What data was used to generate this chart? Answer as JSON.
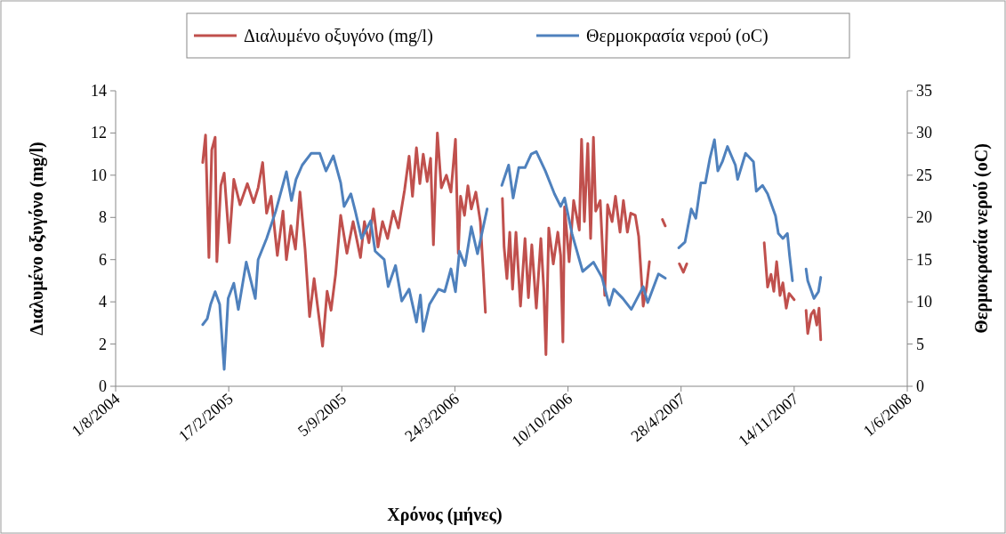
{
  "chart_data": {
    "type": "line",
    "xlabel": "Χρόνος (μήνες)",
    "ylabel": "Διαλυμένο οξυγόνο (mg/l)",
    "y2label": "Θερμοκρασία νερού (oC)",
    "xlim": [
      "2004-08-01",
      "2008-06-01"
    ],
    "xticks": [
      {
        "value": "2004-08-01",
        "label": "1/8/2004"
      },
      {
        "value": "2005-02-17",
        "label": "17/2/2005"
      },
      {
        "value": "2005-09-05",
        "label": "5/9/2005"
      },
      {
        "value": "2006-03-24",
        "label": "24/3/2006"
      },
      {
        "value": "2006-10-10",
        "label": "10/10/2006"
      },
      {
        "value": "2007-04-28",
        "label": "28/4/2007"
      },
      {
        "value": "2007-11-14",
        "label": "14/11/2007"
      },
      {
        "value": "2008-06-01",
        "label": "1/6/2008"
      }
    ],
    "ylim": [
      0,
      14
    ],
    "yticks": [
      0,
      2,
      4,
      6,
      8,
      10,
      12,
      14
    ],
    "y2lim": [
      0,
      35
    ],
    "y2ticks": [
      0,
      5,
      10,
      15,
      20,
      25,
      30,
      35
    ],
    "legend": "top",
    "grid": false,
    "marker": "none",
    "line_style": "solid",
    "series": [
      {
        "name": "Διαλυμένο οξυγόνο (mg/l)",
        "color": "#c0504d",
        "x": [
          "2005-01-02",
          "2005-01-07",
          "2005-01-13",
          "2005-01-18",
          "2005-01-24",
          "2005-01-27",
          "2005-02-03",
          "2005-02-09",
          "2005-02-18",
          "2005-02-26",
          "2005-03-09",
          "2005-03-22",
          "2005-04-02",
          "2005-04-10",
          "2005-04-18",
          "2005-04-25",
          "2005-05-03",
          "2005-05-14",
          "2005-05-24",
          "2005-05-30",
          "2005-06-07",
          "2005-06-15",
          "2005-06-23",
          "2005-07-02",
          "2005-07-10",
          "2005-07-18",
          "2005-07-26",
          "2005-08-02",
          "2005-08-10",
          "2005-08-17",
          "2005-08-25",
          "2005-09-03",
          "2005-09-14",
          "2005-09-25",
          "2005-10-08",
          "2005-10-15",
          "2005-10-23",
          "2005-10-31",
          "2005-11-08",
          "2005-11-16",
          "2005-11-25",
          "2005-12-05",
          "2005-12-14",
          "2005-12-25",
          "2006-01-02",
          "2006-01-08",
          "2006-01-15",
          "2006-01-21",
          "2006-01-27",
          "2006-02-03",
          "2006-02-09",
          "2006-02-14",
          "2006-02-18",
          "2006-02-21",
          "2006-02-28",
          "2006-03-09",
          "2006-03-17",
          "2006-03-25",
          "2006-03-30",
          "2006-04-03",
          "2006-04-10",
          "2006-04-16",
          "2006-04-22",
          "2006-04-30",
          "2006-05-08",
          "2006-05-13",
          "2006-05-17",
          "2006-06-01",
          "2006-06-16",
          "2006-06-19",
          "2006-06-24",
          "2006-06-29",
          "2006-07-04",
          "2006-07-10",
          "2006-07-18",
          "2006-07-26",
          "2006-08-01",
          "2006-08-07",
          "2006-08-15",
          "2006-08-23",
          "2006-08-28",
          "2006-09-01",
          "2006-09-06",
          "2006-09-14",
          "2006-09-22",
          "2006-09-27",
          "2006-10-01",
          "2006-10-04",
          "2006-10-12",
          "2006-10-20",
          "2006-10-30",
          "2006-11-03",
          "2006-11-08",
          "2006-11-14",
          "2006-11-19",
          "2006-11-24",
          "2006-11-28",
          "2006-12-06",
          "2006-12-14",
          "2006-12-19",
          "2006-12-27",
          "2007-01-02",
          "2007-01-10",
          "2007-01-16",
          "2007-01-23",
          "2007-01-29",
          "2007-02-06",
          "2007-02-12",
          "2007-02-20",
          "2007-02-26",
          "2007-03-03",
          "2007-03-15",
          "2007-03-26",
          "2007-03-31",
          "2007-04-12",
          "2007-04-25",
          "2007-05-02",
          "2007-05-08",
          "2007-08-01",
          "2007-09-22",
          "2007-09-28",
          "2007-10-04",
          "2007-10-09",
          "2007-10-14",
          "2007-10-20",
          "2007-10-25",
          "2007-10-31",
          "2007-11-05",
          "2007-11-14",
          "2007-11-25",
          "2007-12-05",
          "2007-12-08",
          "2007-12-14",
          "2007-12-19",
          "2007-12-24",
          "2007-12-28",
          "2007-12-31"
        ],
        "values": [
          10.6,
          11.9,
          6.1,
          11.2,
          11.8,
          5.9,
          9.5,
          10.1,
          6.8,
          9.8,
          8.6,
          9.6,
          8.7,
          9.4,
          10.6,
          8.2,
          9.0,
          6.2,
          8.3,
          6.0,
          7.6,
          6.5,
          9.2,
          6.5,
          3.3,
          5.1,
          3.4,
          1.9,
          4.5,
          3.6,
          5.3,
          8.1,
          6.3,
          7.8,
          6.1,
          7.8,
          6.8,
          8.4,
          6.6,
          7.8,
          7.0,
          8.3,
          7.5,
          9.3,
          10.9,
          9.0,
          11.3,
          9.6,
          11.0,
          9.7,
          10.8,
          6.7,
          10.0,
          12.0,
          9.4,
          10.0,
          9.2,
          11.7,
          6.3,
          9.0,
          8.1,
          9.5,
          8.4,
          9.2,
          7.8,
          5.5,
          3.5,
          null,
          8.9,
          6.6,
          5.1,
          7.3,
          4.6,
          7.3,
          3.8,
          7.0,
          4.2,
          6.7,
          3.7,
          7.0,
          4.7,
          1.5,
          7.5,
          5.8,
          7.3,
          6.2,
          2.1,
          8.5,
          5.9,
          8.8,
          7.4,
          11.7,
          7.8,
          11.5,
          7.0,
          11.8,
          8.3,
          8.8,
          4.3,
          8.6,
          7.8,
          9.0,
          7.3,
          8.8,
          7.3,
          8.2,
          8.1,
          7.1,
          3.8,
          4.7,
          5.9,
          null,
          7.9,
          7.6,
          null,
          5.8,
          5.4,
          5.8,
          null,
          6.8,
          4.7,
          5.3,
          4.5,
          5.9,
          4.3,
          4.9,
          3.7,
          4.4,
          4.1,
          null,
          3.6,
          2.5,
          3.4,
          3.6,
          2.9,
          3.7,
          2.2
        ]
      },
      {
        "name": "Θερμοκρασία νερού (oC)",
        "color": "#4f81bd",
        "axis": "y2",
        "x": [
          "2005-01-02",
          "2005-01-10",
          "2005-01-16",
          "2005-01-24",
          "2005-02-01",
          "2005-02-09",
          "2005-02-16",
          "2005-02-26",
          "2005-03-06",
          "2005-03-20",
          "2005-04-05",
          "2005-04-10",
          "2005-04-25",
          "2005-05-11",
          "2005-05-30",
          "2005-06-08",
          "2005-06-16",
          "2005-06-27",
          "2005-07-13",
          "2005-07-28",
          "2005-08-08",
          "2005-08-21",
          "2005-09-03",
          "2005-09-09",
          "2005-09-21",
          "2005-09-29",
          "2005-10-10",
          "2005-10-26",
          "2005-11-03",
          "2005-11-19",
          "2005-11-26",
          "2005-12-09",
          "2005-12-20",
          "2006-01-02",
          "2006-01-15",
          "2006-01-22",
          "2006-01-27",
          "2006-02-07",
          "2006-02-23",
          "2006-03-06",
          "2006-03-17",
          "2006-03-25",
          "2006-04-01",
          "2006-04-11",
          "2006-04-22",
          "2006-05-03",
          "2006-05-20",
          "2006-06-01",
          "2006-06-15",
          "2006-06-27",
          "2006-07-05",
          "2006-07-15",
          "2006-07-26",
          "2006-08-06",
          "2006-08-15",
          "2006-08-31",
          "2006-09-16",
          "2006-09-27",
          "2006-10-04",
          "2006-10-17",
          "2006-11-05",
          "2006-11-24",
          "2006-12-09",
          "2006-12-22",
          "2006-12-30",
          "2007-01-15",
          "2007-01-30",
          "2007-02-20",
          "2007-02-28",
          "2007-03-19",
          "2007-03-31",
          "2007-04-12",
          "2007-04-24",
          "2007-05-05",
          "2007-05-16",
          "2007-05-24",
          "2007-06-02",
          "2007-06-10",
          "2007-06-18",
          "2007-06-26",
          "2007-07-02",
          "2007-07-10",
          "2007-07-19",
          "2007-08-02",
          "2007-08-06",
          "2007-08-20",
          "2007-09-03",
          "2007-09-08",
          "2007-09-19",
          "2007-09-28",
          "2007-10-12",
          "2007-10-17",
          "2007-10-25",
          "2007-11-02",
          "2007-11-06",
          "2007-11-11",
          "2007-11-25",
          "2007-12-05",
          "2007-12-08",
          "2007-12-19",
          "2007-12-27",
          "2007-12-31"
        ],
        "values": [
          7.3,
          8.0,
          9.7,
          11.2,
          9.7,
          2.0,
          10.4,
          12.2,
          9.1,
          14.7,
          10.4,
          15.0,
          17.5,
          20.7,
          25.4,
          22.0,
          24.5,
          26.2,
          27.6,
          27.6,
          25.5,
          27.3,
          24.1,
          21.3,
          22.8,
          20.7,
          17.5,
          19.6,
          16.0,
          15.0,
          11.8,
          14.3,
          10.1,
          11.5,
          7.6,
          10.8,
          6.5,
          9.7,
          11.5,
          11.2,
          13.9,
          11.2,
          16.0,
          14.3,
          18.9,
          15.7,
          21.0,
          null,
          23.8,
          26.2,
          22.3,
          25.9,
          25.9,
          27.5,
          27.8,
          25.5,
          22.8,
          21.3,
          22.3,
          18.1,
          13.6,
          14.7,
          12.9,
          9.6,
          11.5,
          10.4,
          9.1,
          11.8,
          9.9,
          13.3,
          12.8,
          null,
          16.4,
          17.1,
          21.0,
          19.9,
          24.1,
          24.1,
          27.0,
          29.2,
          25.5,
          26.6,
          28.4,
          26.2,
          24.5,
          27.6,
          26.6,
          23.1,
          23.8,
          22.8,
          20.2,
          18.1,
          17.5,
          18.1,
          15.4,
          12.5,
          null,
          13.9,
          12.5,
          10.4,
          11.2,
          12.9
        ]
      }
    ]
  }
}
